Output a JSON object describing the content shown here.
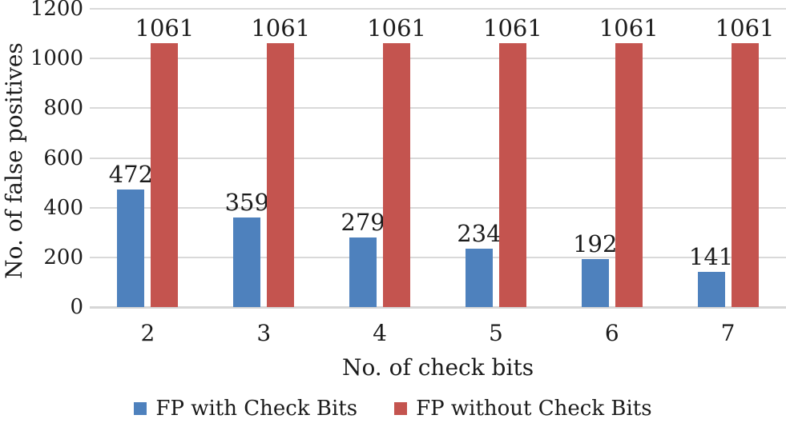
{
  "chart_data": {
    "type": "bar",
    "title": "",
    "xlabel": "No. of check bits",
    "ylabel": "No. of false positives",
    "categories": [
      "2",
      "3",
      "4",
      "5",
      "6",
      "7"
    ],
    "series": [
      {
        "name": "FP with Check Bits",
        "color": "#4E81BD",
        "values": [
          472,
          359,
          279,
          234,
          192,
          141
        ]
      },
      {
        "name": "FP without Check Bits",
        "color": "#C4544F",
        "values": [
          1061,
          1061,
          1061,
          1061,
          1061,
          1061
        ]
      }
    ],
    "ylim": [
      0,
      1200
    ],
    "yticks": [
      0,
      200,
      400,
      600,
      800,
      1000,
      1200
    ],
    "grid": true,
    "data_labels": true,
    "legend_position": "bottom"
  },
  "colors": {
    "gridline": "#D9D9D9",
    "axis_text": "#1C1C1C",
    "background": "#FFFFFF"
  }
}
